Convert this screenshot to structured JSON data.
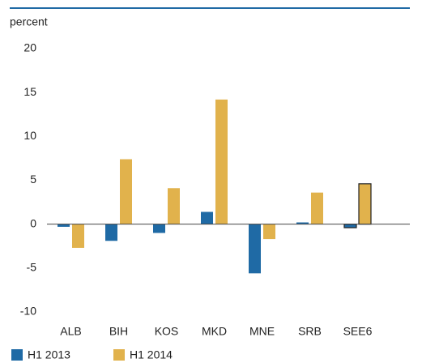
{
  "chart_data": {
    "type": "bar",
    "ylabel": "percent",
    "categories": [
      "ALB",
      "BIH",
      "KOS",
      "MKD",
      "MNE",
      "SRB",
      "SEE6"
    ],
    "series": [
      {
        "name": "H1 2013",
        "color": "#1f6aa5",
        "values": [
          -0.3,
          -1.9,
          -1.0,
          1.4,
          -5.6,
          0.2,
          -0.4
        ]
      },
      {
        "name": "H1 2014",
        "color": "#e1b24c",
        "values": [
          -2.7,
          7.4,
          4.1,
          14.2,
          -1.7,
          3.6,
          4.6
        ]
      }
    ],
    "outlined": "SEE6",
    "ylim": [
      -10,
      20
    ],
    "yticks": [
      -10,
      -5,
      0,
      5,
      10,
      15,
      20
    ],
    "grid": false
  }
}
